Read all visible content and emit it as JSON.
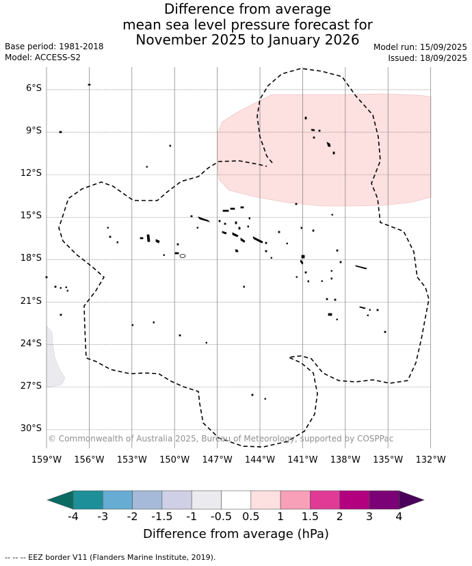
{
  "title_lines": [
    "Difference from average",
    "mean sea level pressure forecast for",
    "November 2025 to January 2026"
  ],
  "base_period": "Base period: 1981-2018",
  "model": "Model: ACCESS-S2",
  "model_run": "Model run: 15/09/2025",
  "issued": "Issued: 18/09/2025",
  "lat_labels": [
    "6°S",
    "9°S",
    "12°S",
    "15°S",
    "18°S",
    "21°S",
    "24°S",
    "27°S",
    "30°S"
  ],
  "lon_labels": [
    "159°W",
    "156°W",
    "153°W",
    "150°W",
    "147°W",
    "144°W",
    "141°W",
    "138°W",
    "135°W",
    "132°W"
  ],
  "copyright": "© Commonwealth of Australia 2025, Bureau of Meteorology, supported by COSPPac",
  "colorbar": {
    "labels": [
      "-4",
      "-3",
      "-2",
      "-1.5",
      "-1",
      "-0.5",
      "0.5",
      "1",
      "1.5",
      "2",
      "3",
      "4"
    ],
    "colors": [
      "#0b6b63",
      "#1d8f98",
      "#67acd2",
      "#a5bad9",
      "#cfd0e6",
      "#ebeaef",
      "#ffffff",
      "#fde0e0",
      "#f7a0b8",
      "#e03a96",
      "#b2007e",
      "#7a0176",
      "#4a005a"
    ],
    "title": "Difference from average (hPa)"
  },
  "footnote": "--  --  -- EEZ border V11 (Flanders Marine Institute, 2019).",
  "map_colors": {
    "positive_anomaly": "#fde0e0",
    "negative_anomaly": "#ebeaef",
    "gridline": "#7a7a7a",
    "eez": "#000000"
  }
}
